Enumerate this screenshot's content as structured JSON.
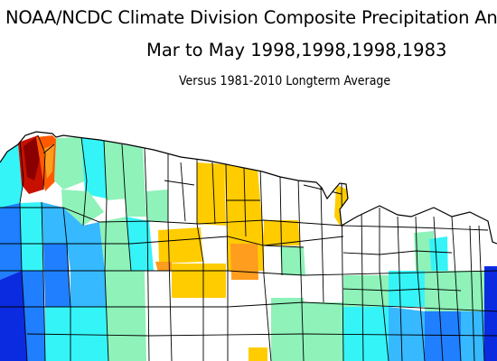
{
  "header": {
    "title_line1": "NOAA/NCDC Climate Division Composite Precipitation An",
    "title_line2": "Mar to May   1998,1998,1998,1983",
    "title_line3": "Versus 1981-2010 Longterm Average"
  },
  "map": {
    "region": "Northwestern and North-Central United States (cropped)",
    "colors": {
      "deep_blue": "#0b2be0",
      "blue": "#1f7fff",
      "light_blue": "#36b9ff",
      "cyan": "#35f4f8",
      "aqua_green": "#5ff0c0",
      "mint": "#8ef2b9",
      "white": "#ffffff",
      "yellow": "#ffcc00",
      "orange": "#ff9d1f",
      "dark_orange": "#ff5a00",
      "red": "#c81000",
      "dark_red": "#8a0000",
      "border": "#000000"
    }
  }
}
